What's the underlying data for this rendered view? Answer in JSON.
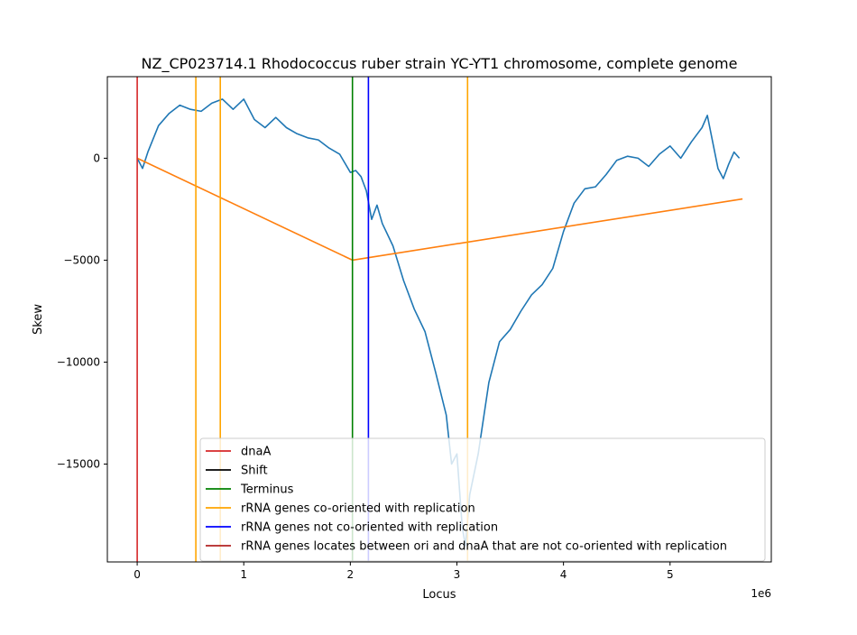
{
  "chart_data": {
    "type": "line",
    "title": "NZ_CP023714.1 Rhodococcus ruber strain YC-YT1 chromosome, complete genome",
    "xlabel": "Locus",
    "ylabel": "Skew",
    "x_offset_label": "1e6",
    "xlim": [
      -280000,
      5950000
    ],
    "ylim": [
      -19800,
      4000
    ],
    "x_ticks": [
      {
        "value": 0,
        "label": "0"
      },
      {
        "value": 1000000,
        "label": "1"
      },
      {
        "value": 2000000,
        "label": "2"
      },
      {
        "value": 3000000,
        "label": "3"
      },
      {
        "value": 4000000,
        "label": "4"
      },
      {
        "value": 5000000,
        "label": "5"
      }
    ],
    "y_ticks": [
      {
        "value": 0,
        "label": "0"
      },
      {
        "value": -5000,
        "label": "−5000"
      },
      {
        "value": -10000,
        "label": "−10000"
      },
      {
        "value": -15000,
        "label": "−15000"
      }
    ],
    "legend_position": "lower-right",
    "series": [
      {
        "name": "skew",
        "color": "#1f77b4",
        "points": [
          [
            0,
            0
          ],
          [
            50000,
            -500
          ],
          [
            100000,
            300
          ],
          [
            200000,
            1600
          ],
          [
            300000,
            2200
          ],
          [
            400000,
            2600
          ],
          [
            500000,
            2400
          ],
          [
            600000,
            2300
          ],
          [
            700000,
            2700
          ],
          [
            800000,
            2900
          ],
          [
            900000,
            2400
          ],
          [
            1000000,
            2900
          ],
          [
            1100000,
            1900
          ],
          [
            1200000,
            1500
          ],
          [
            1300000,
            2000
          ],
          [
            1400000,
            1500
          ],
          [
            1500000,
            1200
          ],
          [
            1600000,
            1000
          ],
          [
            1700000,
            900
          ],
          [
            1800000,
            500
          ],
          [
            1900000,
            200
          ],
          [
            2000000,
            -700
          ],
          [
            2050000,
            -600
          ],
          [
            2100000,
            -900
          ],
          [
            2150000,
            -1600
          ],
          [
            2200000,
            -3000
          ],
          [
            2250000,
            -2300
          ],
          [
            2300000,
            -3200
          ],
          [
            2400000,
            -4300
          ],
          [
            2500000,
            -6000
          ],
          [
            2600000,
            -7400
          ],
          [
            2700000,
            -8500
          ],
          [
            2800000,
            -10500
          ],
          [
            2900000,
            -12600
          ],
          [
            2950000,
            -15000
          ],
          [
            3000000,
            -14500
          ],
          [
            3050000,
            -18100
          ],
          [
            3080000,
            -19000
          ],
          [
            3120000,
            -16500
          ],
          [
            3200000,
            -14500
          ],
          [
            3300000,
            -11000
          ],
          [
            3400000,
            -9000
          ],
          [
            3500000,
            -8400
          ],
          [
            3600000,
            -7500
          ],
          [
            3700000,
            -6700
          ],
          [
            3800000,
            -6200
          ],
          [
            3900000,
            -5400
          ],
          [
            4000000,
            -3600
          ],
          [
            4100000,
            -2200
          ],
          [
            4200000,
            -1500
          ],
          [
            4300000,
            -1400
          ],
          [
            4400000,
            -800
          ],
          [
            4500000,
            -100
          ],
          [
            4600000,
            100
          ],
          [
            4700000,
            0
          ],
          [
            4800000,
            -400
          ],
          [
            4900000,
            200
          ],
          [
            5000000,
            600
          ],
          [
            5100000,
            0
          ],
          [
            5200000,
            800
          ],
          [
            5300000,
            1500
          ],
          [
            5350000,
            2100
          ],
          [
            5400000,
            800
          ],
          [
            5450000,
            -500
          ],
          [
            5500000,
            -1000
          ],
          [
            5550000,
            -300
          ],
          [
            5600000,
            300
          ],
          [
            5650000,
            0
          ]
        ]
      },
      {
        "name": "trend",
        "color": "#ff7f0e",
        "points": [
          [
            0,
            0
          ],
          [
            2020000,
            -5000
          ],
          [
            5680000,
            -2000
          ]
        ]
      }
    ],
    "vertical_lines": [
      {
        "x": 0,
        "color": "#d62728"
      },
      {
        "x": 550000,
        "color": "#ffa500"
      },
      {
        "x": 780000,
        "color": "#ffa500"
      },
      {
        "x": 2020000,
        "color": "#008000"
      },
      {
        "x": 2170000,
        "color": "#0000ff"
      },
      {
        "x": 3100000,
        "color": "#ffa500"
      }
    ],
    "legend": [
      {
        "label": "dnaA",
        "color": "#d62728"
      },
      {
        "label": "Shift",
        "color": "#000000"
      },
      {
        "label": "Terminus",
        "color": "#008000"
      },
      {
        "label": "rRNA genes co-oriented with replication",
        "color": "#ffa500"
      },
      {
        "label": "rRNA genes not co-oriented with replication",
        "color": "#0000ff"
      },
      {
        "label": "rRNA genes locates between ori and dnaA that are not co-oriented with replication",
        "color": "#b22222"
      }
    ]
  }
}
